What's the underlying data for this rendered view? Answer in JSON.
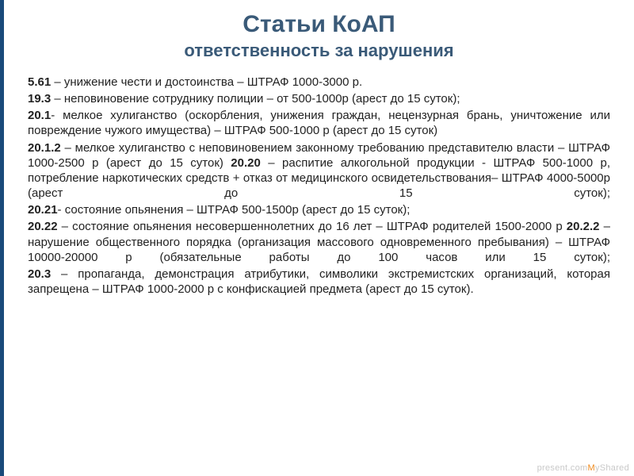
{
  "title": {
    "main": "Статьи КоАП",
    "sub": "ответственность за нарушения"
  },
  "items": [
    {
      "num": "5.61",
      "sep": " – ",
      "text": "унижение чести и достоинства – ШТРАФ 1000-3000 р."
    },
    {
      "num": "19.3",
      "sep": " – ",
      "text": "неповиновение сотруднику полиции – от 500-1000р (арест до 15 суток);"
    },
    {
      "num": "20.1",
      "sep": "- ",
      "text": "мелкое хулиганство (оскорбления, унижения граждан, нецензурная брань, уничтожение или повреждение чужого имущества) – ШТРАФ 500-1000 р (арест до 15 суток)"
    },
    {
      "num": "20.1.2",
      "sep": " – ",
      "text": "мелкое хулиганство с неповиновением законному требованию представителю власти – ШТРАФ 1000-2500 р (арест до 15 суток) ",
      "num2": "20.20",
      "sep2": " – ",
      "text2": "распитие алкогольной продукции - ШТРАФ 500-1000 р, потребление наркотических средств + отказ от медицинского освидетельствования– ШТРАФ 4000-5000р (арест до 15 суток);"
    },
    {
      "num": "20.21",
      "sep": "- ",
      "text": "состояние опьянения – ШТРАФ 500-1500р (арест до 15 суток);"
    },
    {
      "num": "20.22",
      "sep": " – ",
      "text": "состояние опьянения несовершеннолетних до 16 лет – ШТРАФ родителей 1500-2000 р ",
      "num2": "20.2.2",
      "sep2": " – ",
      "text2": "нарушение общественного порядка (организация массового одновременного пребывания) – ШТРАФ 10000-20000 р (обязательные работы до 100 часов или 15 суток);"
    },
    {
      "num": "20.3",
      "sep": " – ",
      "text": "пропаганда, демонстрация атрибутики, символики экстремистских организаций, которая запрещена – ШТРАФ 1000-2000 р с конфискацией предмета (арест до 15 суток)."
    }
  ],
  "watermark": {
    "prefix": "present.com",
    "m": "M",
    "suffix": "yShared"
  },
  "colors": {
    "accent": "#3a5a78",
    "border": "#1a4a7a",
    "text": "#222222",
    "watermark": "#c9c9c9",
    "watermark_accent": "#ef8b1f"
  }
}
